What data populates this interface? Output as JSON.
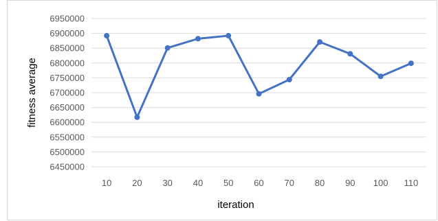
{
  "chart_data": {
    "type": "line",
    "title": "",
    "xlabel": "iteration",
    "ylabel": "fitness average",
    "categories": [
      "10",
      "20",
      "30",
      "40",
      "50",
      "60",
      "70",
      "80",
      "90",
      "100",
      "110"
    ],
    "series": [
      {
        "values": [
          6892000,
          6617000,
          6851000,
          6882000,
          6892000,
          6696000,
          6744000,
          6871000,
          6831000,
          6755000,
          6799000
        ],
        "color": "#4472c4"
      }
    ],
    "ylim": [
      6450000,
      6950000
    ],
    "yticks": [
      "6950000",
      "6900000",
      "6850000",
      "6800000",
      "6750000",
      "6700000",
      "6650000",
      "6600000",
      "6550000",
      "6500000",
      "6450000"
    ],
    "grid": true,
    "legend": "none"
  }
}
